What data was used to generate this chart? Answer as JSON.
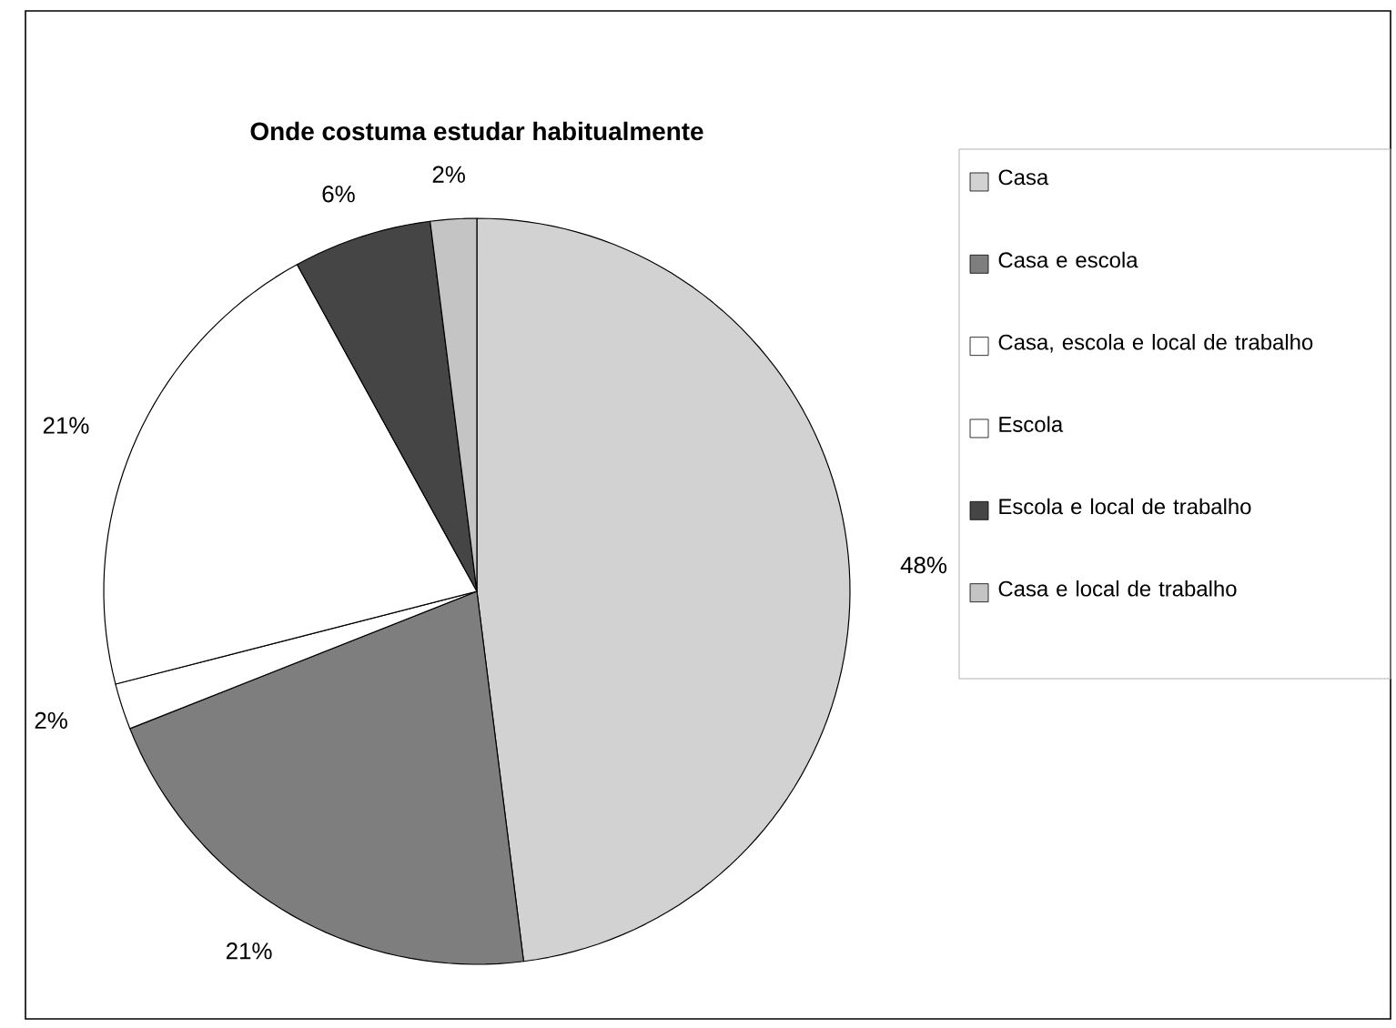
{
  "chart_data": {
    "type": "pie",
    "title": "Onde costuma estudar habitualmente",
    "categories": [
      "Casa",
      "Casa e escola",
      "Casa, escola e local de trabalho",
      "Escola",
      "Escola e local de trabalho",
      "Casa e local de trabalho"
    ],
    "values": [
      48,
      21,
      2,
      21,
      6,
      2
    ],
    "value_labels": [
      "48%",
      "21%",
      "2%",
      "21%",
      "6%",
      "2%"
    ],
    "colors": [
      "#d2d2d2",
      "#7e7e7e",
      "#ffffff",
      "#ffffff",
      "#454545",
      "#c4c4c4"
    ],
    "legend": "right"
  }
}
